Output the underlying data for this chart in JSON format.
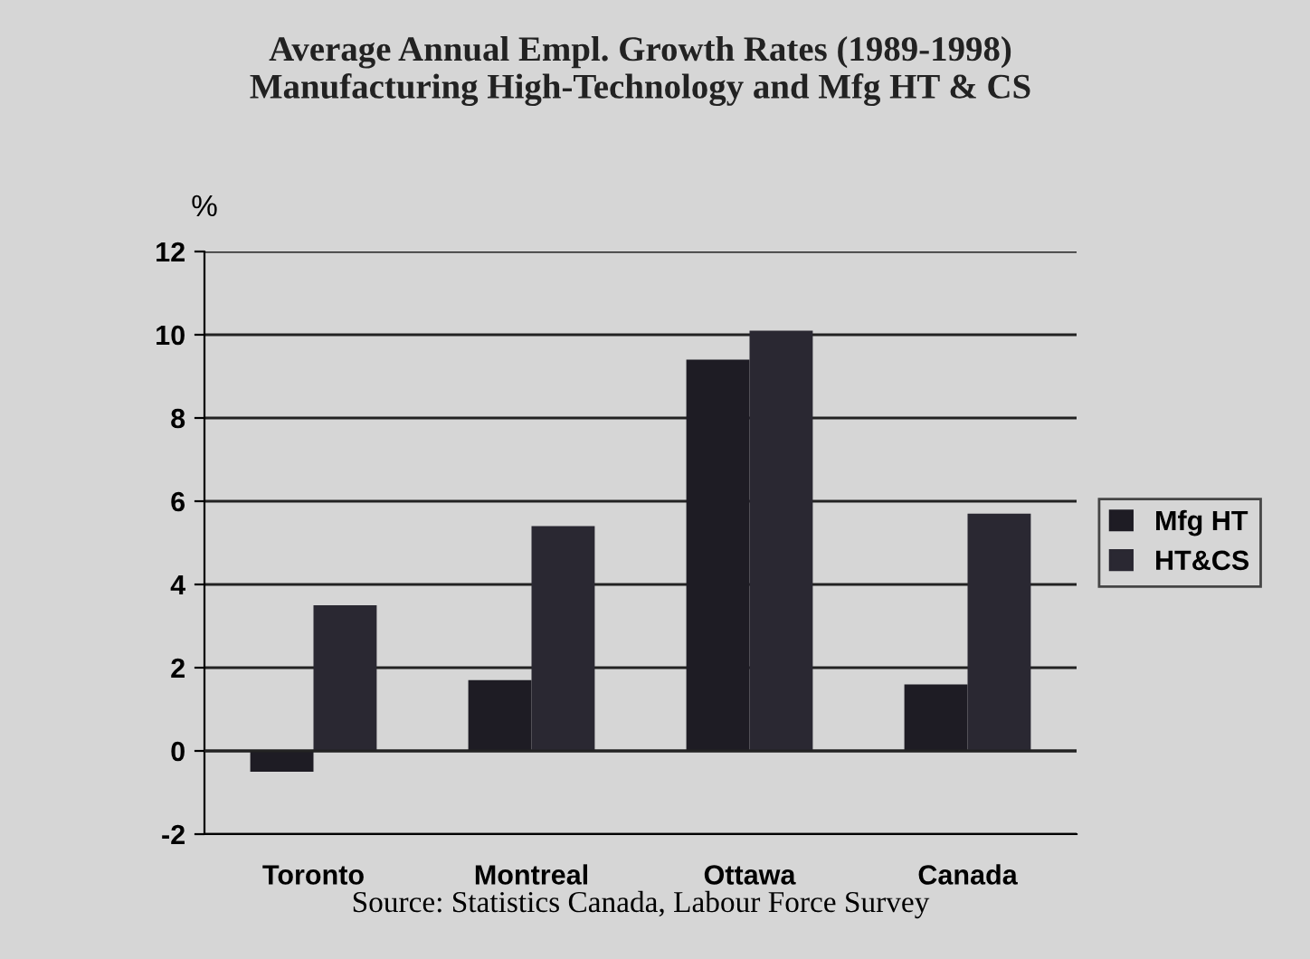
{
  "chart_data": {
    "type": "bar",
    "title": "Average Annual Empl. Growth Rates (1989-1998)\nManufacturing High-Technology and Mfg HT & CS",
    "ylabel": "%",
    "categories": [
      "Toronto",
      "Montreal",
      "Ottawa",
      "Canada"
    ],
    "series": [
      {
        "name": "Mfg HT",
        "color": "#1e1c24",
        "values": [
          -0.5,
          1.7,
          9.4,
          1.6
        ]
      },
      {
        "name": "HT&CS",
        "color": "#2a2832",
        "values": [
          3.5,
          5.4,
          10.1,
          5.7
        ]
      }
    ],
    "ylim": [
      -2,
      12
    ],
    "yticks": [
      -2,
      0,
      2,
      4,
      6,
      8,
      10,
      12
    ],
    "grid": "y",
    "legend": "right",
    "annotations": [
      "Source: Statistics Canada, Labour Force Survey"
    ]
  }
}
